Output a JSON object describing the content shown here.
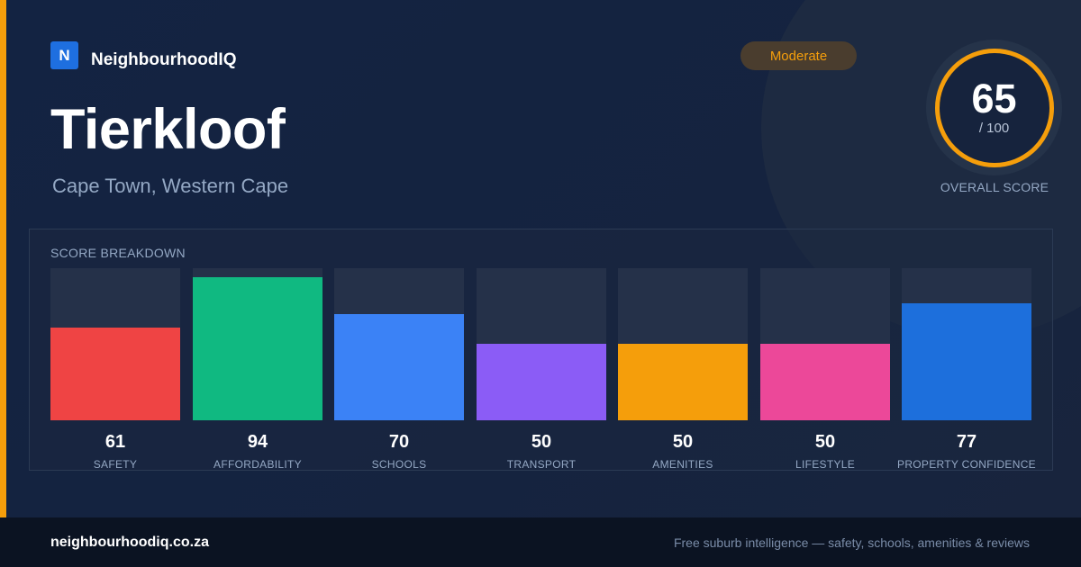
{
  "brand": {
    "logo_letter": "N",
    "name": "NeighbourhoodIQ"
  },
  "suburb": {
    "name": "Tierkloof",
    "location": "Cape Town, Western Cape"
  },
  "rating": {
    "label": "Moderate",
    "color": "#f59e0b"
  },
  "overall": {
    "score": "65",
    "max": "/ 100",
    "label": "OVERALL SCORE",
    "ring_color": "#f59e0b"
  },
  "breakdown": {
    "title": "SCORE BREAKDOWN",
    "max_score": 100,
    "items": [
      {
        "label": "SAFETY",
        "value": "61",
        "score": 61,
        "color": "#ef4444"
      },
      {
        "label": "AFFORDABILITY",
        "value": "94",
        "score": 94,
        "color": "#10b981"
      },
      {
        "label": "SCHOOLS",
        "value": "70",
        "score": 70,
        "color": "#3b82f6"
      },
      {
        "label": "TRANSPORT",
        "value": "50",
        "score": 50,
        "color": "#8b5cf6"
      },
      {
        "label": "AMENITIES",
        "value": "50",
        "score": 50,
        "color": "#f59e0b"
      },
      {
        "label": "LIFESTYLE",
        "value": "50",
        "score": 50,
        "color": "#ec4899"
      },
      {
        "label": "PROPERTY CONFIDENCE",
        "value": "77",
        "score": 77,
        "color": "#1d6fdc"
      }
    ]
  },
  "footer": {
    "domain": "neighbourhoodiq.co.za",
    "tagline": "Free suburb intelligence — safety, schools, amenities & reviews"
  }
}
